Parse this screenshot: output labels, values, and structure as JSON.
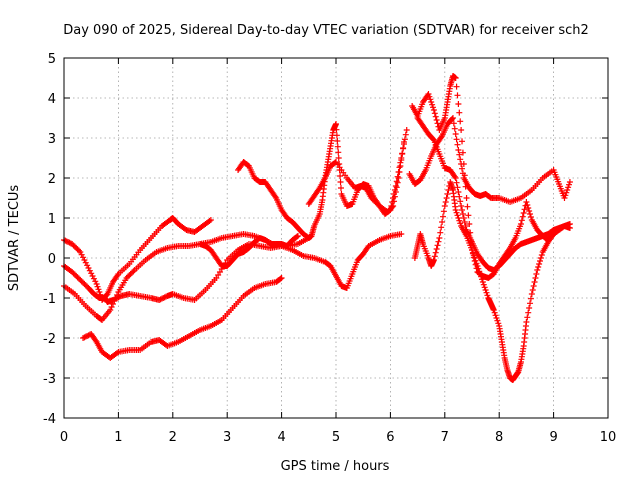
{
  "chart_data": {
    "type": "scatter",
    "title": "Day 090 of 2025, Sidereal Day-to-day VTEC variation (SDTVAR) for receiver sch2",
    "xlabel": "GPS time / hours",
    "ylabel": "SDTVAR / TECUs",
    "xlim": [
      0,
      10
    ],
    "ylim": [
      -4,
      5
    ],
    "xticks": [
      "0",
      "1",
      "2",
      "3",
      "4",
      "5",
      "6",
      "7",
      "8",
      "9",
      "10"
    ],
    "yticks": [
      "-4",
      "-3",
      "-2",
      "-1",
      "0",
      "1",
      "2",
      "3",
      "4",
      "5"
    ],
    "grid": true,
    "marker": "+",
    "color": "#ff0000",
    "series": [
      {
        "x": [
          0.0,
          0.15,
          0.3,
          0.45,
          0.6,
          0.7,
          0.8,
          0.9,
          1.0,
          1.2,
          1.4,
          1.6,
          1.8,
          1.95,
          2.0,
          2.1,
          2.25,
          2.4,
          2.55,
          2.7
        ],
        "y": [
          0.45,
          0.35,
          0.15,
          -0.25,
          -0.65,
          -1.05,
          -0.9,
          -0.6,
          -0.4,
          -0.15,
          0.2,
          0.5,
          0.8,
          0.95,
          1.0,
          0.85,
          0.7,
          0.65,
          0.8,
          0.95
        ]
      },
      {
        "x": [
          0.0,
          0.15,
          0.3,
          0.45,
          0.55,
          0.65,
          0.75,
          0.8,
          0.9,
          1.05,
          1.2,
          1.4,
          1.6,
          1.75,
          1.9,
          2.0,
          2.2,
          2.4,
          2.6,
          2.8,
          3.0,
          3.2,
          3.4,
          3.6,
          3.8,
          4.0,
          4.2,
          4.4,
          4.6,
          4.8,
          4.9,
          5.0,
          5.1,
          5.2,
          5.3,
          5.4,
          5.5,
          5.6,
          5.8,
          6.0,
          6.2
        ],
        "y": [
          -0.2,
          -0.35,
          -0.55,
          -0.75,
          -0.9,
          -1.0,
          -1.0,
          -1.1,
          -1.05,
          -0.95,
          -0.9,
          -0.95,
          -1.0,
          -1.05,
          -0.95,
          -0.9,
          -1.0,
          -1.05,
          -0.8,
          -0.5,
          -0.05,
          0.2,
          0.35,
          0.3,
          0.25,
          0.3,
          0.2,
          0.05,
          0.0,
          -0.1,
          -0.2,
          -0.45,
          -0.7,
          -0.75,
          -0.4,
          -0.05,
          0.1,
          0.3,
          0.45,
          0.55,
          0.6
        ]
      },
      {
        "x": [
          0.0,
          0.2,
          0.4,
          0.6,
          0.7,
          0.85,
          1.0,
          1.15,
          1.3,
          1.5,
          1.7,
          1.9,
          2.1,
          2.3,
          2.5,
          2.7,
          2.9,
          3.1,
          3.3,
          3.5,
          3.7,
          3.9,
          4.1,
          4.3,
          4.5
        ],
        "y": [
          -0.7,
          -0.9,
          -1.2,
          -1.45,
          -1.55,
          -1.3,
          -0.85,
          -0.5,
          -0.3,
          -0.05,
          0.15,
          0.25,
          0.3,
          0.3,
          0.35,
          0.4,
          0.5,
          0.55,
          0.6,
          0.55,
          0.45,
          0.3,
          0.3,
          0.35,
          0.5
        ]
      },
      {
        "x": [
          0.35,
          0.5,
          0.6,
          0.7,
          0.85,
          1.0,
          1.2,
          1.4,
          1.6,
          1.75,
          1.9,
          2.1,
          2.3,
          2.5,
          2.7,
          2.9,
          3.1,
          3.3,
          3.5,
          3.7,
          3.9,
          4.0
        ],
        "y": [
          -2.0,
          -1.9,
          -2.1,
          -2.35,
          -2.5,
          -2.35,
          -2.3,
          -2.3,
          -2.1,
          -2.05,
          -2.2,
          -2.1,
          -1.95,
          -1.8,
          -1.7,
          -1.55,
          -1.25,
          -0.95,
          -0.75,
          -0.65,
          -0.6,
          -0.5
        ]
      },
      {
        "x": [
          2.5,
          2.6,
          2.7,
          2.8,
          2.9,
          3.0,
          3.1,
          3.2,
          3.3,
          3.4,
          3.5,
          3.6,
          3.7,
          3.8,
          3.9,
          4.0,
          4.1,
          4.2,
          4.3
        ],
        "y": [
          0.35,
          0.3,
          0.2,
          0.0,
          -0.2,
          -0.2,
          -0.05,
          0.1,
          0.15,
          0.25,
          0.4,
          0.5,
          0.45,
          0.35,
          0.35,
          0.35,
          0.3,
          0.45,
          0.55
        ]
      },
      {
        "x": [
          3.2,
          3.3,
          3.4,
          3.5,
          3.6,
          3.7,
          3.8,
          3.9,
          4.0,
          4.1,
          4.2,
          4.3,
          4.4,
          4.5,
          4.55,
          4.6,
          4.7,
          4.75,
          4.8,
          4.85,
          4.9,
          4.95,
          5.0,
          5.05,
          5.1,
          5.2,
          5.3,
          5.4,
          5.5,
          5.6,
          5.7,
          5.8,
          5.9,
          6.0,
          6.1,
          6.2,
          6.3
        ],
        "y": [
          2.2,
          2.4,
          2.3,
          2.0,
          1.9,
          1.9,
          1.7,
          1.5,
          1.2,
          1.0,
          0.9,
          0.75,
          0.6,
          0.5,
          0.55,
          0.8,
          1.1,
          1.45,
          2.0,
          2.4,
          2.8,
          3.2,
          3.35,
          2.5,
          1.6,
          1.3,
          1.35,
          1.7,
          1.85,
          1.8,
          1.5,
          1.3,
          1.1,
          1.2,
          1.8,
          2.5,
          3.2
        ]
      },
      {
        "x": [
          4.5,
          4.6,
          4.7,
          4.8,
          4.9,
          5.0,
          5.2,
          5.35,
          5.45,
          5.55,
          5.65,
          5.8,
          5.95,
          6.05,
          6.15,
          6.25
        ],
        "y": [
          1.35,
          1.55,
          1.75,
          2.0,
          2.3,
          2.4,
          2.0,
          1.75,
          1.8,
          1.75,
          1.5,
          1.3,
          1.15,
          1.3,
          2.0,
          2.9
        ]
      },
      {
        "x": [
          6.35,
          6.45,
          6.55,
          6.65,
          6.75,
          6.85,
          6.95,
          7.05,
          7.15,
          7.25,
          7.35,
          7.45,
          7.55,
          7.65,
          7.75,
          7.85,
          8.0,
          8.2,
          8.4,
          8.6,
          8.8,
          9.0,
          9.1,
          9.2,
          9.3
        ],
        "y": [
          2.1,
          1.85,
          1.95,
          2.2,
          2.55,
          2.85,
          3.05,
          3.35,
          3.5,
          2.7,
          2.0,
          1.75,
          1.6,
          1.55,
          1.6,
          1.5,
          1.5,
          1.4,
          1.5,
          1.7,
          2.0,
          2.2,
          1.85,
          1.5,
          1.9
        ]
      },
      {
        "x": [
          6.4,
          6.5,
          6.6,
          6.7,
          6.8,
          6.9,
          7.0,
          7.05,
          7.1,
          7.15,
          7.2,
          7.3,
          7.4,
          7.5,
          7.6,
          7.7,
          7.8,
          7.9,
          8.0,
          8.1,
          8.2,
          8.3,
          8.4,
          8.5,
          8.6,
          8.7,
          8.8,
          8.9,
          9.0
        ],
        "y": [
          3.8,
          3.55,
          3.9,
          4.1,
          3.7,
          3.2,
          3.5,
          3.9,
          4.3,
          4.55,
          4.5,
          3.2,
          1.5,
          0.2,
          -0.35,
          -0.45,
          -0.5,
          -0.4,
          -0.15,
          0.05,
          0.25,
          0.5,
          0.85,
          1.4,
          0.95,
          0.7,
          0.55,
          0.45,
          0.6
        ]
      },
      {
        "x": [
          6.5,
          6.6,
          6.7,
          6.8,
          6.9,
          7.0,
          7.1,
          7.2,
          7.3,
          7.4,
          7.5,
          7.6,
          7.7,
          7.8,
          7.9,
          8.0,
          8.1,
          8.2,
          8.3,
          8.4,
          8.5,
          8.6,
          8.7,
          8.8,
          8.9,
          9.0,
          9.1,
          9.2,
          9.3
        ],
        "y": [
          3.5,
          3.3,
          3.1,
          2.95,
          2.6,
          2.25,
          2.2,
          2.0,
          1.3,
          0.7,
          0.4,
          0.1,
          -0.1,
          -0.25,
          -0.3,
          -0.2,
          -0.05,
          0.1,
          0.25,
          0.35,
          0.4,
          0.45,
          0.5,
          0.55,
          0.6,
          0.7,
          0.75,
          0.8,
          0.85
        ]
      },
      {
        "x": [
          6.45,
          6.5,
          6.55,
          6.6,
          6.7,
          6.75,
          6.8,
          6.9,
          7.0,
          7.1,
          7.15,
          7.2,
          7.3,
          7.4,
          7.5,
          7.6,
          7.7,
          7.8,
          7.85,
          7.9,
          8.0,
          8.05,
          8.1,
          8.15,
          8.2,
          8.25,
          8.3,
          8.35,
          8.4,
          8.45,
          8.5,
          8.6,
          8.7,
          8.8,
          8.9,
          9.0,
          9.1,
          9.2,
          9.3
        ],
        "y": [
          0.0,
          0.3,
          0.6,
          0.35,
          0.0,
          -0.2,
          -0.05,
          0.5,
          1.3,
          1.9,
          1.7,
          1.2,
          0.8,
          0.55,
          0.2,
          -0.2,
          -0.6,
          -1.0,
          -1.15,
          -1.3,
          -1.7,
          -2.1,
          -2.5,
          -2.8,
          -3.0,
          -3.05,
          -2.95,
          -2.85,
          -2.6,
          -2.2,
          -1.6,
          -0.9,
          -0.3,
          0.15,
          0.4,
          0.6,
          0.7,
          0.8,
          0.75
        ]
      }
    ]
  }
}
